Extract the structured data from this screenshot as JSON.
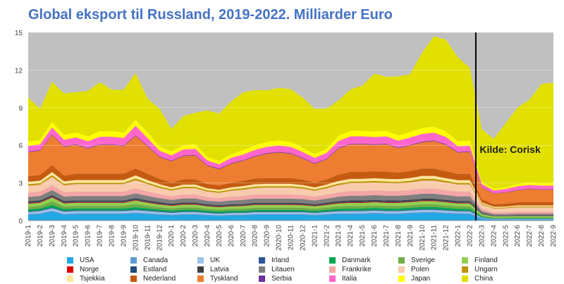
{
  "chart_data": {
    "type": "area",
    "title": "Global eksport til Russland, 2019-2022. Milliarder Euro",
    "xlabel": "",
    "ylabel": "",
    "ylim": [
      0,
      15
    ],
    "yticks": [
      0,
      3,
      6,
      9,
      12,
      15
    ],
    "x": [
      "2019-1",
      "2019-2",
      "2019-3",
      "2019-4",
      "2019-5",
      "2019-6",
      "2019-7",
      "2019-8",
      "2019-9",
      "2019-10",
      "2019-11",
      "2019-12",
      "2020-1",
      "2020-2",
      "2020-3",
      "2020-4",
      "2020-5",
      "2020-6",
      "2020-7",
      "2020-8",
      "2020-9",
      "2020-10",
      "2020-11",
      "2020-12",
      "2021-1",
      "2021-2",
      "2021-3",
      "2021-4",
      "2021-5",
      "2021-6",
      "2021-7",
      "2021-8",
      "2021-9",
      "2021-10",
      "2021-11",
      "2021-12",
      "2022-1",
      "2022-2",
      "2022-3",
      "2022-4",
      "2022-5",
      "2022-6",
      "2022-7",
      "2022-8",
      "2022-9"
    ],
    "stacked": true,
    "grid": true,
    "legend_position": "bottom",
    "background_color": "#C0C0C0",
    "annotation": {
      "text": "Kilde: Corisk",
      "x": "2022-3",
      "y": 5.4
    },
    "reference_line": {
      "between": [
        "2022-2",
        "2022-3"
      ]
    },
    "series": [
      {
        "name": "USA",
        "color": "#1FA7E6",
        "values": [
          0.45,
          0.5,
          0.7,
          0.45,
          0.5,
          0.5,
          0.5,
          0.5,
          0.5,
          0.55,
          0.5,
          0.45,
          0.4,
          0.45,
          0.45,
          0.4,
          0.35,
          0.4,
          0.4,
          0.45,
          0.45,
          0.45,
          0.45,
          0.45,
          0.4,
          0.45,
          0.5,
          0.5,
          0.5,
          0.55,
          0.5,
          0.5,
          0.55,
          0.6,
          0.6,
          0.55,
          0.5,
          0.5,
          0.15,
          0.08,
          0.08,
          0.08,
          0.08,
          0.08,
          0.08
        ]
      },
      {
        "name": "Canada",
        "color": "#5B9BD5",
        "values": [
          0.08,
          0.08,
          0.08,
          0.08,
          0.08,
          0.08,
          0.08,
          0.08,
          0.08,
          0.08,
          0.08,
          0.08,
          0.07,
          0.07,
          0.07,
          0.07,
          0.07,
          0.07,
          0.07,
          0.07,
          0.07,
          0.07,
          0.07,
          0.07,
          0.07,
          0.08,
          0.08,
          0.08,
          0.08,
          0.08,
          0.08,
          0.08,
          0.08,
          0.08,
          0.08,
          0.08,
          0.08,
          0.08,
          0.03,
          0.02,
          0.02,
          0.02,
          0.02,
          0.02,
          0.02
        ]
      },
      {
        "name": "UK",
        "color": "#9DC3E6",
        "values": [
          0.15,
          0.18,
          0.2,
          0.18,
          0.18,
          0.18,
          0.18,
          0.18,
          0.18,
          0.2,
          0.18,
          0.16,
          0.15,
          0.16,
          0.16,
          0.14,
          0.13,
          0.14,
          0.14,
          0.15,
          0.15,
          0.15,
          0.15,
          0.15,
          0.14,
          0.15,
          0.16,
          0.17,
          0.17,
          0.17,
          0.17,
          0.17,
          0.18,
          0.18,
          0.18,
          0.17,
          0.16,
          0.16,
          0.05,
          0.03,
          0.03,
          0.03,
          0.03,
          0.03,
          0.03
        ]
      },
      {
        "name": "Irland",
        "color": "#2E5597",
        "values": [
          0.06,
          0.06,
          0.06,
          0.06,
          0.06,
          0.06,
          0.06,
          0.06,
          0.06,
          0.06,
          0.06,
          0.06,
          0.06,
          0.06,
          0.06,
          0.05,
          0.05,
          0.05,
          0.05,
          0.05,
          0.05,
          0.05,
          0.05,
          0.05,
          0.05,
          0.05,
          0.06,
          0.06,
          0.06,
          0.06,
          0.06,
          0.06,
          0.06,
          0.06,
          0.06,
          0.06,
          0.06,
          0.06,
          0.03,
          0.02,
          0.02,
          0.02,
          0.02,
          0.02,
          0.02
        ]
      },
      {
        "name": "Danmark",
        "color": "#00A651",
        "values": [
          0.15,
          0.15,
          0.2,
          0.15,
          0.15,
          0.15,
          0.15,
          0.15,
          0.15,
          0.18,
          0.15,
          0.13,
          0.12,
          0.13,
          0.13,
          0.12,
          0.12,
          0.12,
          0.12,
          0.13,
          0.13,
          0.13,
          0.13,
          0.12,
          0.12,
          0.13,
          0.14,
          0.15,
          0.15,
          0.15,
          0.15,
          0.15,
          0.15,
          0.16,
          0.16,
          0.15,
          0.14,
          0.14,
          0.06,
          0.04,
          0.04,
          0.05,
          0.05,
          0.05,
          0.05
        ]
      },
      {
        "name": "Sverige",
        "color": "#70AD47",
        "values": [
          0.2,
          0.2,
          0.3,
          0.2,
          0.2,
          0.2,
          0.2,
          0.2,
          0.2,
          0.25,
          0.2,
          0.18,
          0.17,
          0.18,
          0.18,
          0.16,
          0.15,
          0.16,
          0.17,
          0.18,
          0.18,
          0.18,
          0.18,
          0.17,
          0.16,
          0.17,
          0.19,
          0.2,
          0.2,
          0.2,
          0.2,
          0.2,
          0.2,
          0.21,
          0.21,
          0.2,
          0.19,
          0.19,
          0.07,
          0.05,
          0.05,
          0.05,
          0.05,
          0.05,
          0.05
        ]
      },
      {
        "name": "Finland",
        "color": "#92D050",
        "values": [
          0.25,
          0.25,
          0.3,
          0.25,
          0.25,
          0.25,
          0.25,
          0.25,
          0.25,
          0.28,
          0.25,
          0.22,
          0.2,
          0.22,
          0.22,
          0.2,
          0.2,
          0.2,
          0.21,
          0.22,
          0.22,
          0.22,
          0.22,
          0.21,
          0.2,
          0.21,
          0.23,
          0.25,
          0.25,
          0.25,
          0.25,
          0.25,
          0.25,
          0.26,
          0.26,
          0.25,
          0.24,
          0.24,
          0.12,
          0.1,
          0.1,
          0.11,
          0.11,
          0.11,
          0.11
        ]
      },
      {
        "name": "Norge",
        "color": "#E00000",
        "values": [
          0.05,
          0.05,
          0.05,
          0.05,
          0.05,
          0.05,
          0.05,
          0.05,
          0.05,
          0.05,
          0.05,
          0.05,
          0.05,
          0.05,
          0.05,
          0.04,
          0.04,
          0.04,
          0.04,
          0.05,
          0.05,
          0.05,
          0.05,
          0.05,
          0.04,
          0.05,
          0.05,
          0.05,
          0.05,
          0.05,
          0.05,
          0.05,
          0.05,
          0.05,
          0.05,
          0.05,
          0.05,
          0.05,
          0.02,
          0.01,
          0.01,
          0.01,
          0.01,
          0.01,
          0.01
        ]
      },
      {
        "name": "Estland",
        "color": "#1F4E79",
        "values": [
          0.06,
          0.06,
          0.06,
          0.06,
          0.06,
          0.06,
          0.06,
          0.06,
          0.06,
          0.06,
          0.06,
          0.06,
          0.05,
          0.05,
          0.05,
          0.05,
          0.05,
          0.05,
          0.05,
          0.05,
          0.05,
          0.05,
          0.05,
          0.05,
          0.05,
          0.05,
          0.06,
          0.06,
          0.06,
          0.06,
          0.06,
          0.06,
          0.06,
          0.06,
          0.06,
          0.06,
          0.06,
          0.06,
          0.03,
          0.02,
          0.02,
          0.02,
          0.02,
          0.02,
          0.02
        ]
      },
      {
        "name": "Latvia",
        "color": "#404040",
        "values": [
          0.08,
          0.08,
          0.08,
          0.08,
          0.08,
          0.08,
          0.08,
          0.08,
          0.08,
          0.08,
          0.08,
          0.08,
          0.07,
          0.07,
          0.07,
          0.07,
          0.07,
          0.07,
          0.07,
          0.07,
          0.07,
          0.07,
          0.07,
          0.07,
          0.07,
          0.08,
          0.08,
          0.08,
          0.08,
          0.08,
          0.08,
          0.08,
          0.08,
          0.08,
          0.08,
          0.08,
          0.08,
          0.08,
          0.04,
          0.03,
          0.03,
          0.03,
          0.03,
          0.03,
          0.03
        ]
      },
      {
        "name": "Litauen",
        "color": "#7F7F7F",
        "values": [
          0.35,
          0.35,
          0.4,
          0.35,
          0.35,
          0.35,
          0.35,
          0.35,
          0.35,
          0.38,
          0.35,
          0.32,
          0.3,
          0.32,
          0.32,
          0.28,
          0.28,
          0.3,
          0.32,
          0.33,
          0.33,
          0.33,
          0.33,
          0.32,
          0.3,
          0.32,
          0.35,
          0.38,
          0.38,
          0.38,
          0.38,
          0.38,
          0.38,
          0.4,
          0.4,
          0.38,
          0.37,
          0.37,
          0.15,
          0.12,
          0.12,
          0.13,
          0.13,
          0.13,
          0.13
        ]
      },
      {
        "name": "Frankrike",
        "color": "#F4A6A6",
        "values": [
          0.35,
          0.35,
          0.4,
          0.35,
          0.35,
          0.35,
          0.35,
          0.35,
          0.35,
          0.4,
          0.35,
          0.32,
          0.3,
          0.32,
          0.32,
          0.28,
          0.28,
          0.3,
          0.32,
          0.33,
          0.33,
          0.33,
          0.33,
          0.32,
          0.3,
          0.32,
          0.35,
          0.38,
          0.38,
          0.38,
          0.38,
          0.38,
          0.38,
          0.4,
          0.4,
          0.38,
          0.37,
          0.37,
          0.18,
          0.14,
          0.14,
          0.15,
          0.15,
          0.15,
          0.15
        ]
      },
      {
        "name": "Polen",
        "color": "#F8CBAD",
        "values": [
          0.55,
          0.55,
          0.65,
          0.55,
          0.6,
          0.6,
          0.6,
          0.6,
          0.6,
          0.65,
          0.6,
          0.5,
          0.45,
          0.5,
          0.5,
          0.45,
          0.42,
          0.48,
          0.5,
          0.52,
          0.55,
          0.55,
          0.55,
          0.52,
          0.48,
          0.52,
          0.58,
          0.62,
          0.62,
          0.62,
          0.62,
          0.6,
          0.62,
          0.65,
          0.65,
          0.62,
          0.58,
          0.58,
          0.35,
          0.3,
          0.32,
          0.35,
          0.35,
          0.35,
          0.35
        ]
      },
      {
        "name": "Ungarn",
        "color": "#BF9000",
        "values": [
          0.12,
          0.12,
          0.14,
          0.12,
          0.12,
          0.12,
          0.12,
          0.12,
          0.12,
          0.14,
          0.12,
          0.11,
          0.1,
          0.11,
          0.11,
          0.1,
          0.1,
          0.1,
          0.11,
          0.11,
          0.11,
          0.11,
          0.11,
          0.11,
          0.1,
          0.11,
          0.12,
          0.13,
          0.13,
          0.13,
          0.13,
          0.13,
          0.13,
          0.14,
          0.14,
          0.13,
          0.13,
          0.13,
          0.07,
          0.06,
          0.06,
          0.07,
          0.07,
          0.07,
          0.07
        ]
      },
      {
        "name": "Tsjekkia",
        "color": "#FFE699",
        "values": [
          0.2,
          0.2,
          0.25,
          0.2,
          0.2,
          0.2,
          0.2,
          0.2,
          0.2,
          0.24,
          0.2,
          0.18,
          0.16,
          0.18,
          0.18,
          0.16,
          0.15,
          0.17,
          0.18,
          0.19,
          0.19,
          0.19,
          0.19,
          0.18,
          0.17,
          0.18,
          0.2,
          0.22,
          0.22,
          0.22,
          0.22,
          0.21,
          0.22,
          0.23,
          0.23,
          0.22,
          0.21,
          0.21,
          0.1,
          0.08,
          0.08,
          0.09,
          0.09,
          0.09,
          0.09
        ]
      },
      {
        "name": "Nederland",
        "color": "#C55A11",
        "values": [
          0.45,
          0.45,
          0.55,
          0.45,
          0.5,
          0.5,
          0.5,
          0.5,
          0.5,
          0.55,
          0.5,
          0.42,
          0.38,
          0.42,
          0.42,
          0.35,
          0.33,
          0.38,
          0.42,
          0.45,
          0.45,
          0.45,
          0.45,
          0.42,
          0.38,
          0.42,
          0.5,
          0.55,
          0.55,
          0.55,
          0.55,
          0.52,
          0.55,
          0.58,
          0.58,
          0.55,
          0.5,
          0.5,
          0.25,
          0.2,
          0.22,
          0.25,
          0.25,
          0.25,
          0.25
        ]
      },
      {
        "name": "Tyskland",
        "color": "#ED7D31",
        "values": [
          1.9,
          1.95,
          2.4,
          2.3,
          2.3,
          2.0,
          2.3,
          2.3,
          2.2,
          2.6,
          2.2,
          1.75,
          1.7,
          1.85,
          1.9,
          1.45,
          1.3,
          1.5,
          1.6,
          1.75,
          1.95,
          2.05,
          1.95,
          1.7,
          1.5,
          1.6,
          2.1,
          2.2,
          2.2,
          2.1,
          2.2,
          1.95,
          2.05,
          2.1,
          2.2,
          2.1,
          1.7,
          1.75,
          0.95,
          0.85,
          0.9,
          0.95,
          1.05,
          1.0,
          1.0
        ]
      },
      {
        "name": "Serbia",
        "color": "#7030A0",
        "values": [
          0.05,
          0.05,
          0.05,
          0.05,
          0.05,
          0.05,
          0.05,
          0.05,
          0.05,
          0.05,
          0.05,
          0.05,
          0.05,
          0.05,
          0.05,
          0.05,
          0.05,
          0.05,
          0.05,
          0.05,
          0.05,
          0.05,
          0.05,
          0.05,
          0.05,
          0.05,
          0.05,
          0.05,
          0.05,
          0.05,
          0.05,
          0.05,
          0.05,
          0.05,
          0.05,
          0.05,
          0.05,
          0.05,
          0.03,
          0.03,
          0.03,
          0.03,
          0.03,
          0.03,
          0.03
        ]
      },
      {
        "name": "Italia",
        "color": "#FF66CC",
        "values": [
          0.45,
          0.45,
          0.55,
          0.5,
          0.55,
          0.55,
          0.6,
          0.6,
          0.6,
          0.75,
          0.6,
          0.45,
          0.42,
          0.48,
          0.48,
          0.38,
          0.35,
          0.42,
          0.45,
          0.48,
          0.5,
          0.5,
          0.5,
          0.45,
          0.42,
          0.45,
          0.55,
          0.58,
          0.58,
          0.58,
          0.58,
          0.55,
          0.58,
          0.62,
          0.62,
          0.58,
          0.45,
          0.45,
          0.25,
          0.22,
          0.25,
          0.3,
          0.3,
          0.3,
          0.3
        ]
      },
      {
        "name": "Japan",
        "color": "#FFFF00",
        "values": [
          0.35,
          0.35,
          0.45,
          0.4,
          0.4,
          0.4,
          0.45,
          0.45,
          0.45,
          0.5,
          0.45,
          0.35,
          0.32,
          0.35,
          0.38,
          0.28,
          0.25,
          0.3,
          0.35,
          0.38,
          0.4,
          0.4,
          0.4,
          0.35,
          0.3,
          0.35,
          0.42,
          0.45,
          0.45,
          0.45,
          0.45,
          0.42,
          0.45,
          0.48,
          0.48,
          0.45,
          0.4,
          0.4,
          0.15,
          0.12,
          0.15,
          0.18,
          0.2,
          0.2,
          0.2
        ]
      },
      {
        "name": "China",
        "color": "#E1E000",
        "values": [
          3.5,
          2.5,
          3.2,
          3.3,
          3.2,
          3.6,
          3.9,
          3.3,
          3.4,
          3.7,
          2.7,
          3.0,
          1.8,
          2.3,
          2.5,
          3.7,
          3.8,
          4.2,
          4.6,
          4.4,
          4.1,
          4.2,
          4.2,
          4.0,
          3.6,
          3.2,
          2.8,
          3.3,
          3.6,
          4.6,
          4.3,
          4.7,
          4.6,
          6.0,
          7.2,
          7.3,
          6.7,
          5.8,
          4.2,
          4.0,
          5.1,
          6.1,
          6.6,
          7.9,
          8.0
        ]
      },
      {
        "name": "",
        "color": "#C0C0C0",
        "values": [
          0,
          0,
          0,
          0,
          0,
          0,
          0,
          0,
          0,
          0,
          0,
          0,
          0,
          0,
          0,
          0,
          0,
          0,
          0,
          0,
          0,
          0,
          0,
          0,
          0,
          0,
          0,
          0,
          0,
          0,
          0,
          0,
          0,
          0,
          0,
          0,
          0,
          0,
          0,
          0,
          0,
          0,
          0,
          0,
          0
        ]
      }
    ]
  },
  "legend": {
    "rows": [
      [
        "USA",
        "Canada",
        "UK",
        "Irland",
        "Danmark",
        "Sverige",
        "Finland"
      ],
      [
        "Norge",
        "Estland",
        "Latvia",
        "Litauen",
        "Frankrike",
        "Polen",
        "Ungarn"
      ],
      [
        "Tsjekkia",
        "Nederland",
        "Tyskland",
        "Serbia",
        "Italia",
        "Japan",
        "China"
      ]
    ]
  }
}
